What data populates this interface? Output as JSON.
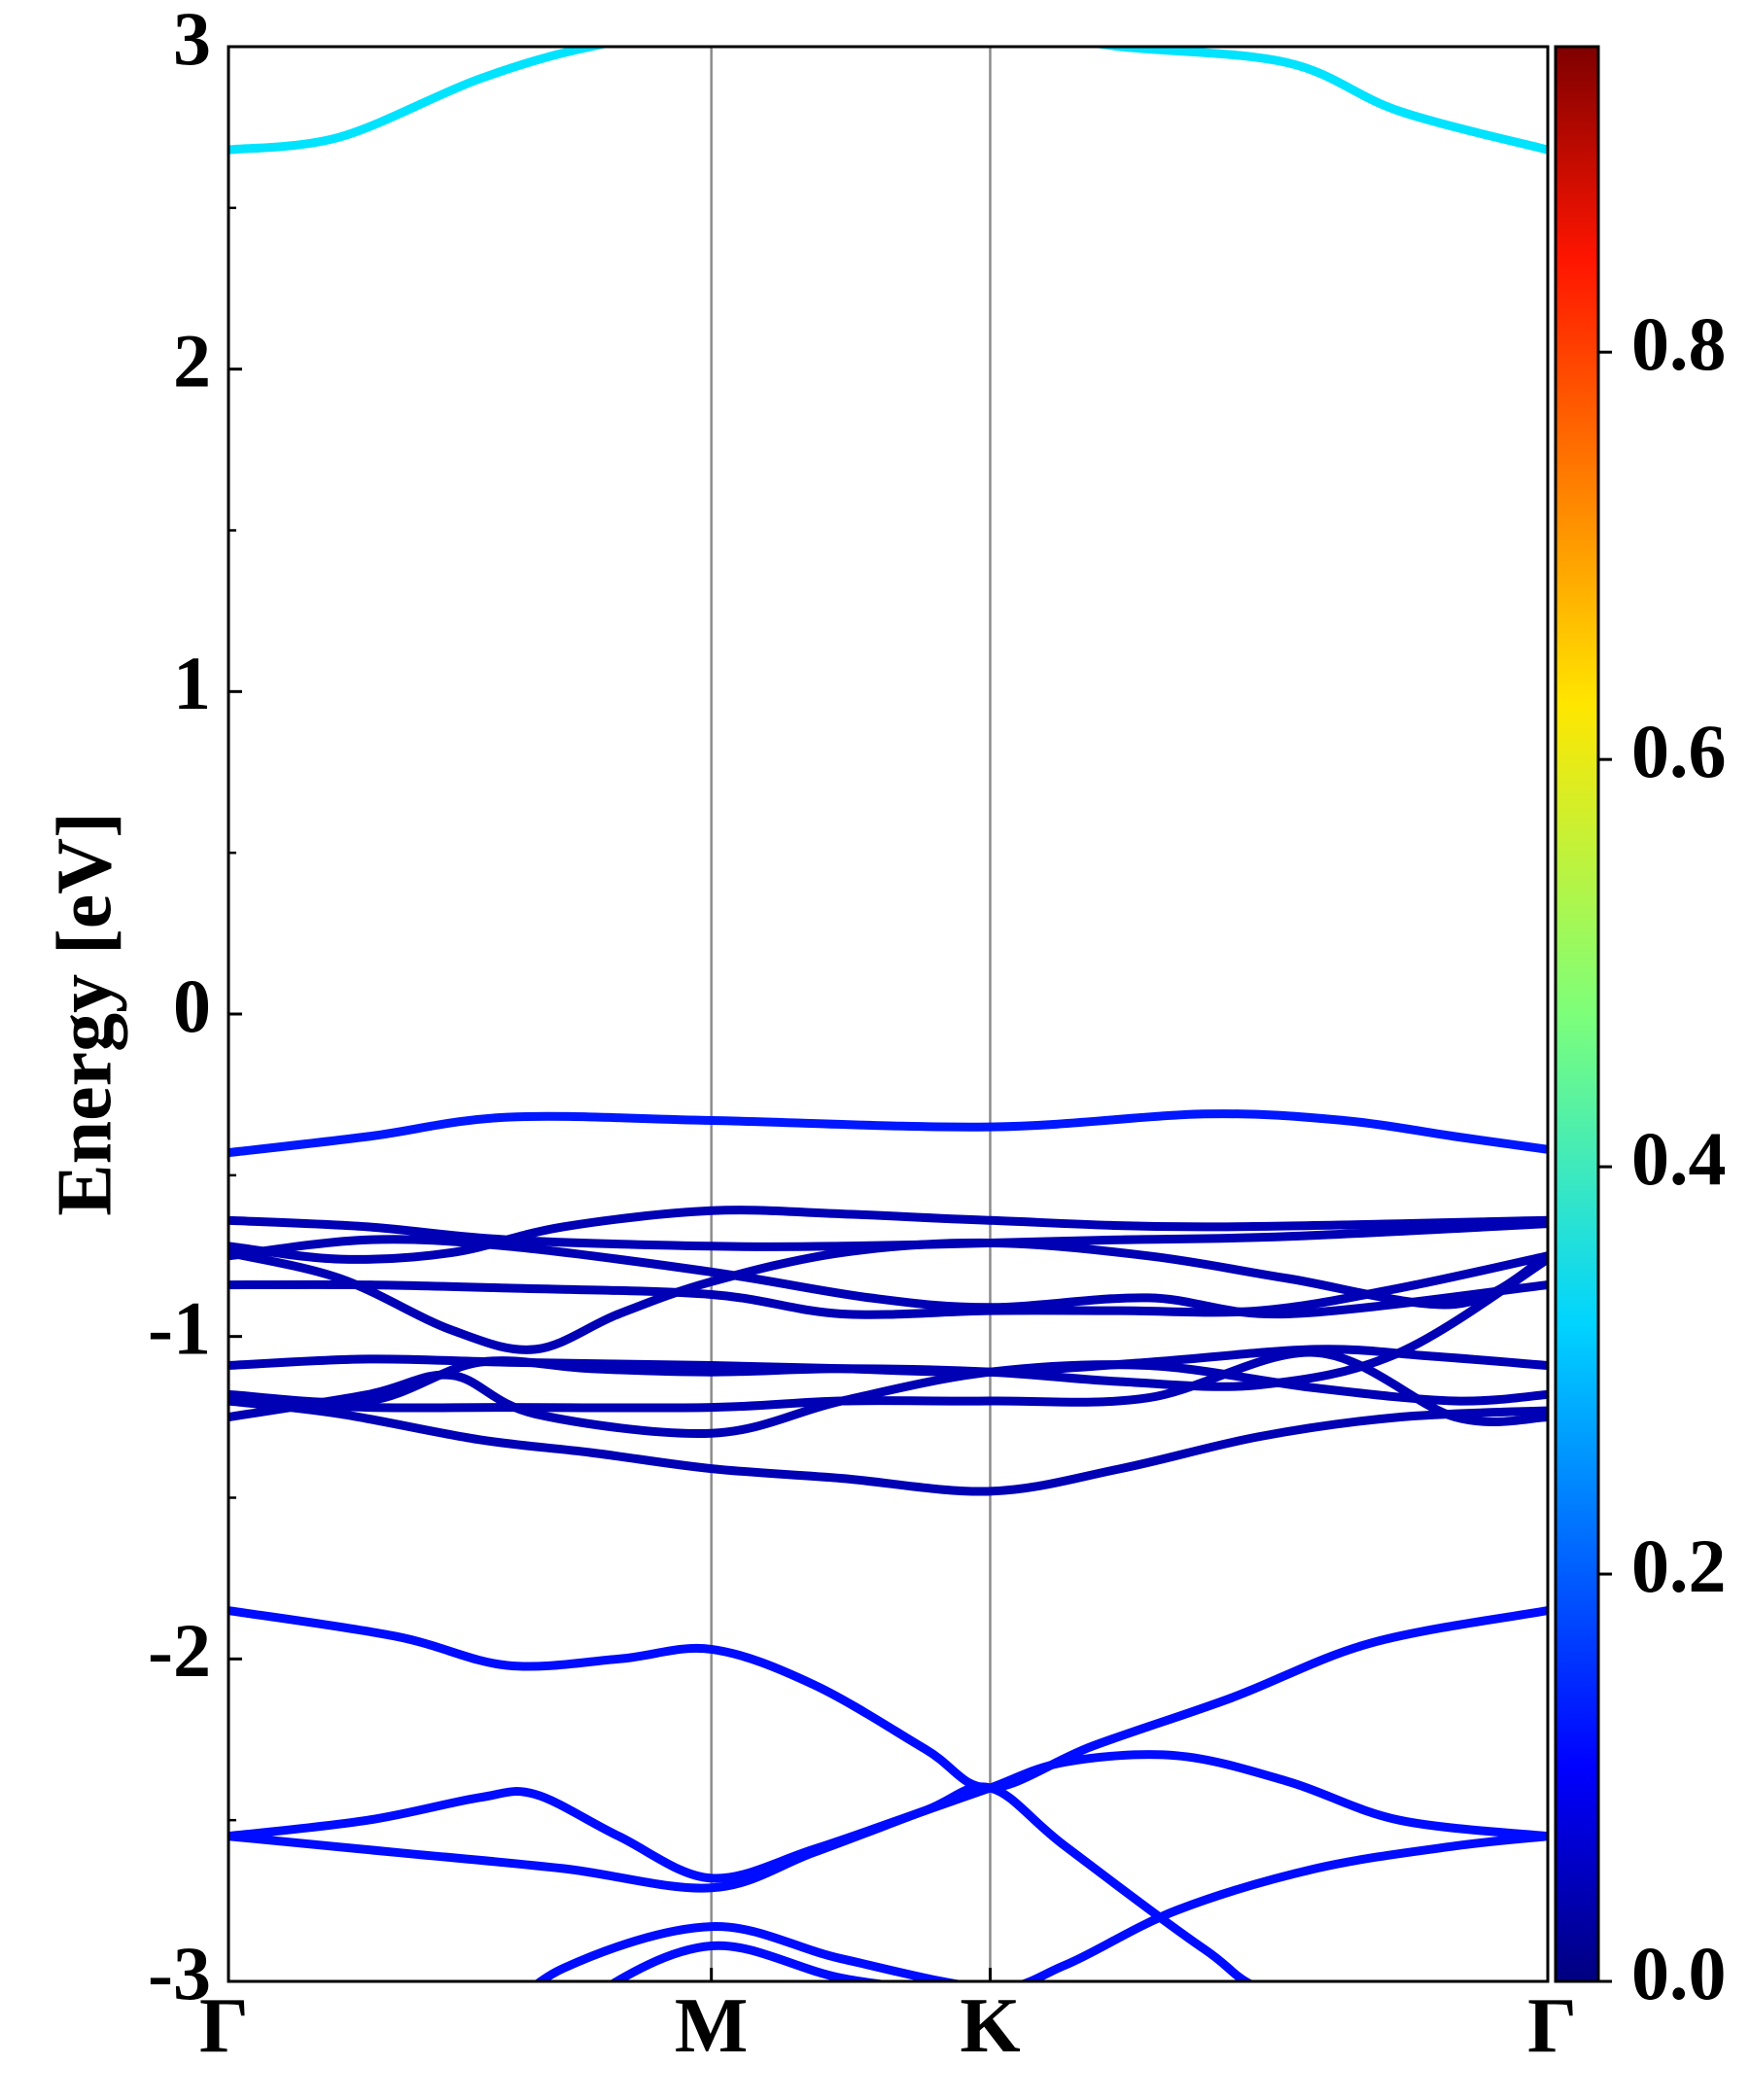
{
  "chart_data": {
    "type": "line",
    "title": "",
    "ylabel": "Energy [eV]",
    "ylim": [
      -3,
      3
    ],
    "y_ticks": [
      "3",
      "2",
      "1",
      "0",
      "-1",
      "-2",
      "-3"
    ],
    "y_tick_values": [
      3,
      2,
      1,
      0,
      -1,
      -2,
      -3
    ],
    "y_minor_ticks": [
      2.5,
      1.5,
      0.5,
      -0.5,
      -1.5,
      -2.5
    ],
    "k_path": [
      "Γ",
      "M",
      "K",
      "Γ"
    ],
    "k_positions": [
      0,
      1.732,
      2.732,
      4.732
    ],
    "grid": "vertical lines at high-symmetry points",
    "colorbar": {
      "min": 0.0,
      "max": 0.95,
      "ticks": [
        "0.0",
        "0.2",
        "0.4",
        "0.6",
        "0.8"
      ],
      "tick_values": [
        0.0,
        0.2,
        0.4,
        0.6,
        0.8
      ],
      "colormap": "jet"
    },
    "bands": [
      {
        "weight": 0.33,
        "points": [
          [
            0,
            2.68
          ],
          [
            0.4,
            2.72
          ],
          [
            0.9,
            2.9
          ],
          [
            1.3,
            3.0
          ],
          [
            1.732,
            3.05
          ],
          [
            2.732,
            3.05
          ],
          [
            3.2,
            3.0
          ],
          [
            3.8,
            2.95
          ],
          [
            4.2,
            2.8
          ],
          [
            4.732,
            2.68
          ]
        ]
      },
      {
        "weight": 0.14,
        "points": [
          [
            0,
            -0.43
          ],
          [
            0.5,
            -0.38
          ],
          [
            1.0,
            -0.32
          ],
          [
            1.732,
            -0.33
          ],
          [
            2.732,
            -0.35
          ],
          [
            3.5,
            -0.31
          ],
          [
            4.0,
            -0.33
          ],
          [
            4.4,
            -0.38
          ],
          [
            4.732,
            -0.42
          ]
        ]
      },
      {
        "weight": 0.05,
        "points": [
          [
            0,
            -0.64
          ],
          [
            0.5,
            -0.66
          ],
          [
            1.0,
            -0.7
          ],
          [
            1.732,
            -0.72
          ],
          [
            2.2,
            -0.72
          ],
          [
            2.732,
            -0.71
          ],
          [
            3.2,
            -0.7
          ],
          [
            3.8,
            -0.69
          ],
          [
            4.732,
            -0.65
          ]
        ]
      },
      {
        "weight": 0.05,
        "points": [
          [
            0,
            -0.72
          ],
          [
            0.4,
            -0.76
          ],
          [
            0.8,
            -0.74
          ],
          [
            1.2,
            -0.66
          ],
          [
            1.732,
            -0.61
          ],
          [
            2.2,
            -0.62
          ],
          [
            2.732,
            -0.64
          ],
          [
            3.5,
            -0.66
          ],
          [
            4.732,
            -0.64
          ]
        ]
      },
      {
        "weight": 0.05,
        "points": [
          [
            0,
            -0.75
          ],
          [
            0.5,
            -0.7
          ],
          [
            1.0,
            -0.72
          ],
          [
            1.732,
            -0.8
          ],
          [
            2.3,
            -0.88
          ],
          [
            2.732,
            -0.91
          ],
          [
            3.3,
            -0.88
          ],
          [
            3.8,
            -0.93
          ],
          [
            4.732,
            -0.84
          ]
        ]
      },
      {
        "weight": 0.05,
        "points": [
          [
            0,
            -0.84
          ],
          [
            0.5,
            -0.84
          ],
          [
            1.0,
            -0.85
          ],
          [
            1.732,
            -0.87
          ],
          [
            2.2,
            -0.93
          ],
          [
            2.732,
            -0.92
          ],
          [
            3.2,
            -0.92
          ],
          [
            3.7,
            -0.92
          ],
          [
            4.2,
            -0.85
          ],
          [
            4.732,
            -0.75
          ]
        ]
      },
      {
        "weight": 0.05,
        "points": [
          [
            0,
            -0.74
          ],
          [
            0.4,
            -0.82
          ],
          [
            0.8,
            -0.98
          ],
          [
            1.1,
            -1.04
          ],
          [
            1.4,
            -0.93
          ],
          [
            1.732,
            -0.83
          ],
          [
            2.2,
            -0.74
          ],
          [
            2.732,
            -0.71
          ],
          [
            3.3,
            -0.75
          ],
          [
            3.8,
            -0.82
          ],
          [
            4.4,
            -0.9
          ],
          [
            4.732,
            -0.75
          ]
        ]
      },
      {
        "weight": 0.05,
        "points": [
          [
            0,
            -1.09
          ],
          [
            0.5,
            -1.07
          ],
          [
            1.0,
            -1.08
          ],
          [
            1.732,
            -1.09
          ],
          [
            2.2,
            -1.1
          ],
          [
            2.732,
            -1.11
          ],
          [
            3.3,
            -1.08
          ],
          [
            3.9,
            -1.04
          ],
          [
            4.3,
            -1.06
          ],
          [
            4.732,
            -1.09
          ]
        ]
      },
      {
        "weight": 0.05,
        "points": [
          [
            0,
            -1.18
          ],
          [
            0.5,
            -1.2
          ],
          [
            0.9,
            -1.08
          ],
          [
            1.3,
            -1.1
          ],
          [
            1.732,
            -1.11
          ],
          [
            2.2,
            -1.1
          ],
          [
            2.732,
            -1.11
          ],
          [
            3.2,
            -1.14
          ],
          [
            3.7,
            -1.15
          ],
          [
            4.2,
            -1.05
          ],
          [
            4.732,
            -0.76
          ]
        ]
      },
      {
        "weight": 0.05,
        "points": [
          [
            0,
            -1.25
          ],
          [
            0.5,
            -1.18
          ],
          [
            0.8,
            -1.12
          ],
          [
            1.1,
            -1.24
          ],
          [
            1.732,
            -1.3
          ],
          [
            2.2,
            -1.2
          ],
          [
            2.732,
            -1.11
          ],
          [
            3.3,
            -1.09
          ],
          [
            3.9,
            -1.16
          ],
          [
            4.4,
            -1.2
          ],
          [
            4.732,
            -1.18
          ]
        ]
      },
      {
        "weight": 0.05,
        "points": [
          [
            0,
            -1.2
          ],
          [
            0.5,
            -1.22
          ],
          [
            1.0,
            -1.22
          ],
          [
            1.732,
            -1.22
          ],
          [
            2.2,
            -1.2
          ],
          [
            2.732,
            -1.2
          ],
          [
            3.3,
            -1.19
          ],
          [
            3.9,
            -1.05
          ],
          [
            4.4,
            -1.25
          ],
          [
            4.732,
            -1.25
          ]
        ]
      },
      {
        "weight": 0.05,
        "points": [
          [
            0,
            -1.2
          ],
          [
            0.4,
            -1.24
          ],
          [
            0.9,
            -1.32
          ],
          [
            1.3,
            -1.36
          ],
          [
            1.732,
            -1.41
          ],
          [
            2.2,
            -1.44
          ],
          [
            2.732,
            -1.48
          ],
          [
            3.2,
            -1.41
          ],
          [
            3.7,
            -1.31
          ],
          [
            4.2,
            -1.25
          ],
          [
            4.732,
            -1.23
          ]
        ]
      },
      {
        "weight": 0.13,
        "points": [
          [
            0,
            -1.85
          ],
          [
            0.6,
            -1.93
          ],
          [
            1.0,
            -2.02
          ],
          [
            1.4,
            -2.0
          ],
          [
            1.732,
            -1.97
          ],
          [
            2.1,
            -2.08
          ],
          [
            2.5,
            -2.28
          ],
          [
            2.732,
            -2.4
          ],
          [
            3.1,
            -2.27
          ],
          [
            3.6,
            -2.12
          ],
          [
            4.1,
            -1.95
          ],
          [
            4.732,
            -1.85
          ]
        ]
      },
      {
        "weight": 0.13,
        "points": [
          [
            0,
            -2.55
          ],
          [
            0.5,
            -2.5
          ],
          [
            0.9,
            -2.43
          ],
          [
            1.1,
            -2.42
          ],
          [
            1.4,
            -2.55
          ],
          [
            1.732,
            -2.68
          ],
          [
            2.1,
            -2.59
          ],
          [
            2.5,
            -2.47
          ],
          [
            2.732,
            -2.4
          ],
          [
            3.0,
            -2.32
          ],
          [
            3.4,
            -2.3
          ],
          [
            3.8,
            -2.38
          ],
          [
            4.2,
            -2.5
          ],
          [
            4.732,
            -2.55
          ]
        ]
      },
      {
        "weight": 0.13,
        "points": [
          [
            0,
            -2.55
          ],
          [
            0.6,
            -2.6
          ],
          [
            1.2,
            -2.65
          ],
          [
            1.732,
            -2.71
          ],
          [
            2.1,
            -2.6
          ],
          [
            2.5,
            -2.47
          ],
          [
            2.732,
            -2.4
          ],
          [
            3.0,
            -2.58
          ],
          [
            3.5,
            -2.9
          ],
          [
            3.8,
            -3.05
          ],
          [
            4.732,
            -3.2
          ]
        ]
      },
      {
        "weight": 0.13,
        "points": [
          [
            0,
            -3.4
          ],
          [
            0.8,
            -3.2
          ],
          [
            1.2,
            -2.96
          ],
          [
            1.732,
            -2.83
          ],
          [
            2.2,
            -2.93
          ],
          [
            2.732,
            -3.02
          ],
          [
            3.0,
            -2.95
          ],
          [
            3.4,
            -2.78
          ],
          [
            3.9,
            -2.65
          ],
          [
            4.4,
            -2.58
          ],
          [
            4.732,
            -2.55
          ]
        ]
      },
      {
        "weight": 0.13,
        "points": [
          [
            0,
            -3.5
          ],
          [
            1.0,
            -3.3
          ],
          [
            1.3,
            -3.05
          ],
          [
            1.732,
            -2.89
          ],
          [
            2.2,
            -2.99
          ],
          [
            2.732,
            -3.06
          ],
          [
            3.2,
            -3.2
          ]
        ]
      }
    ]
  }
}
